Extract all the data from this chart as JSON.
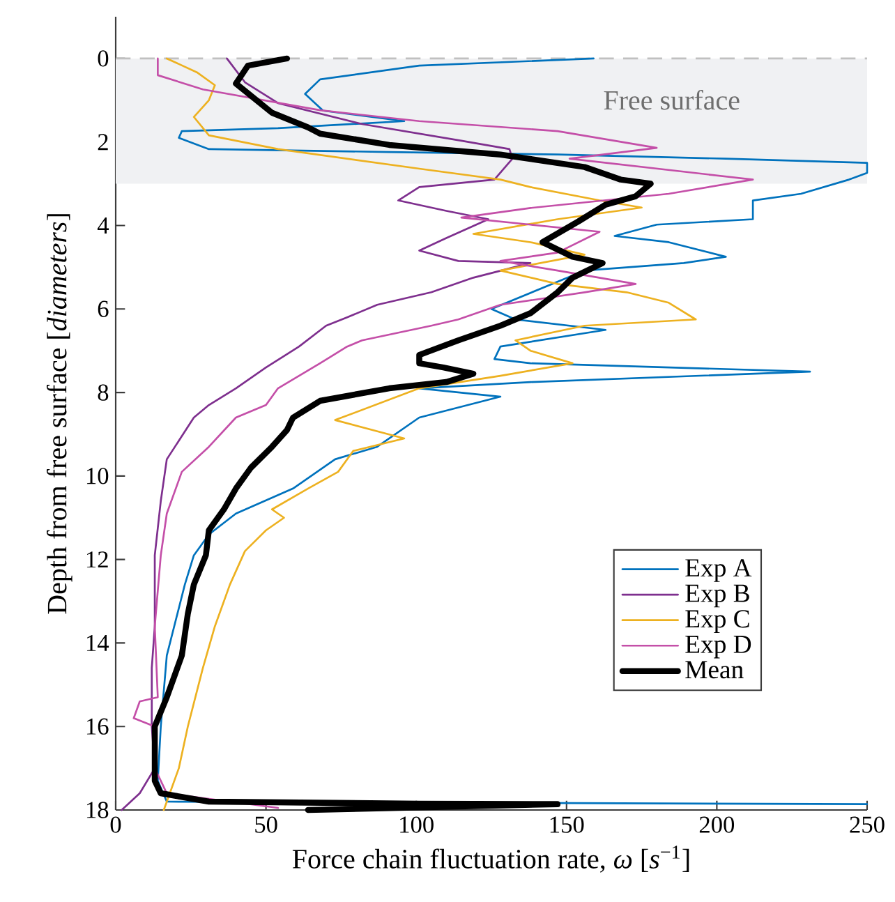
{
  "chart_data": {
    "type": "line",
    "xlabel": "Force chain fluctuation rate, *ω* [*s*$^{−1}$]",
    "ylabel": "Depth from free surface [*diameters*]",
    "xlim": [
      0,
      250
    ],
    "ylim": [
      18,
      -1
    ],
    "xticks": [
      0,
      50,
      100,
      150,
      200,
      250
    ],
    "yticks": [
      0,
      2,
      4,
      6,
      8,
      10,
      12,
      14,
      16,
      18
    ],
    "grid": false,
    "legend": "bottom right",
    "line_style": "solid",
    "marker": "none",
    "ref_lines": [
      {
        "axis": "y",
        "value": 0,
        "color": "#c0c0c0",
        "line_style": "dashed"
      }
    ],
    "bands": [
      {
        "axis": "y",
        "from": 0,
        "to": 3,
        "label": "Free surface",
        "color": "#f0f1f3"
      }
    ],
    "series": [
      {
        "name": "Exp A",
        "color": "#0072bd",
        "x": [
          159,
          101,
          68,
          63,
          69,
          96,
          54,
          22,
          21,
          31,
          91,
          147,
          203,
          250,
          250,
          244,
          228,
          212,
          212,
          180,
          166,
          184,
          203,
          189,
          156,
          125,
          133,
          163,
          128,
          126,
          138,
          231,
          138,
          101,
          128,
          101,
          87,
          73,
          59,
          40,
          31,
          26,
          23,
          17,
          15,
          14,
          17,
          250
        ],
        "values": [
          0,
          0.17,
          0.5,
          0.85,
          1.25,
          1.5,
          1.67,
          1.74,
          1.9,
          2.17,
          2.24,
          2.3,
          2.4,
          2.5,
          2.74,
          2.9,
          3.24,
          3.4,
          3.85,
          3.98,
          4.25,
          4.4,
          4.75,
          4.9,
          5.08,
          6.0,
          6.25,
          6.5,
          6.9,
          7.2,
          7.3,
          7.5,
          7.75,
          7.9,
          8.1,
          8.6,
          9.3,
          9.6,
          10.3,
          10.9,
          11.4,
          11.9,
          12.6,
          14.3,
          16,
          17.3,
          17.8,
          17.86
        ]
      },
      {
        "name": "Exp B",
        "color": "#7e2f8e",
        "x": [
          37,
          43,
          54,
          82,
          115,
          131,
          132,
          126,
          101,
          94,
          110,
          124,
          110,
          101,
          114,
          138,
          119,
          105,
          87,
          77,
          70,
          61,
          50,
          40,
          31,
          26,
          17,
          15,
          13,
          13,
          12,
          12,
          13,
          8,
          2
        ],
        "values": [
          0,
          0.57,
          1.07,
          1.57,
          1.97,
          2.17,
          2.4,
          2.9,
          3.08,
          3.4,
          3.65,
          3.85,
          4.3,
          4.6,
          4.85,
          4.9,
          5.25,
          5.6,
          5.9,
          6.2,
          6.4,
          6.9,
          7.4,
          7.9,
          8.3,
          8.6,
          9.6,
          10.6,
          11.9,
          13.6,
          14.6,
          16,
          17,
          17.6,
          18
        ]
      },
      {
        "name": "Exp C",
        "color": "#edb120",
        "x": [
          17,
          27,
          33,
          31,
          26,
          31,
          54,
          101,
          128,
          138,
          161,
          175,
          147,
          119,
          138,
          156,
          128,
          147,
          170,
          184,
          193,
          156,
          133,
          138,
          152,
          128,
          101,
          73,
          96,
          79,
          74,
          64,
          52,
          56,
          50,
          43,
          38,
          33,
          29,
          24,
          21,
          16
        ],
        "values": [
          0,
          0.33,
          0.64,
          1.0,
          1.4,
          1.84,
          2.17,
          2.64,
          2.9,
          3.08,
          3.4,
          3.57,
          3.85,
          4.2,
          4.4,
          4.7,
          5.08,
          5.4,
          5.6,
          5.85,
          6.25,
          6.4,
          6.75,
          7.0,
          7.3,
          7.6,
          7.9,
          8.66,
          9.1,
          9.4,
          9.9,
          10.3,
          10.8,
          11.0,
          11.3,
          11.8,
          12.6,
          13.6,
          14.6,
          16,
          17,
          18
        ]
      },
      {
        "name": "Exp D",
        "color": "#c44fa8",
        "x": [
          14,
          14,
          29,
          68,
          101,
          147,
          180,
          151,
          212,
          184,
          138,
          115,
          138,
          161,
          147,
          128,
          147,
          173,
          156,
          128,
          114,
          105,
          82,
          77,
          68,
          54,
          50,
          40,
          31,
          22,
          17,
          15,
          13,
          14,
          8,
          6,
          13,
          13,
          17,
          54
        ],
        "values": [
          0,
          0.4,
          0.74,
          1.24,
          1.5,
          1.74,
          2.14,
          2.4,
          2.9,
          3.24,
          3.58,
          3.81,
          3.98,
          4.15,
          4.65,
          4.85,
          5.08,
          5.4,
          5.6,
          5.9,
          6.25,
          6.4,
          6.75,
          6.9,
          7.3,
          7.9,
          8.3,
          8.6,
          9.3,
          9.9,
          10.9,
          11.9,
          13.6,
          15.3,
          15.4,
          15.8,
          16,
          17,
          17.6,
          17.95
        ]
      },
      {
        "name": "Mean",
        "color": "#000000",
        "x": [
          57,
          44,
          40,
          52,
          64,
          68,
          91,
          128,
          156,
          168,
          178,
          173,
          163,
          154,
          142,
          152,
          162,
          152,
          147,
          138,
          128,
          114,
          101,
          101,
          109,
          119,
          110,
          91,
          68,
          59,
          57,
          52,
          45,
          40,
          36,
          31,
          30,
          26,
          24,
          22,
          17,
          13,
          13,
          15,
          31,
          101,
          147,
          64
        ],
        "values": [
          0,
          0.17,
          0.6,
          1.3,
          1.65,
          1.8,
          2.07,
          2.3,
          2.6,
          2.9,
          3.0,
          3.3,
          3.5,
          3.9,
          4.4,
          4.75,
          4.9,
          5.25,
          5.6,
          6.1,
          6.4,
          6.75,
          7.1,
          7.3,
          7.4,
          7.55,
          7.75,
          7.9,
          8.2,
          8.6,
          8.9,
          9.3,
          9.8,
          10.3,
          10.8,
          11.3,
          11.9,
          12.6,
          13.3,
          14.3,
          15.3,
          16.0,
          17.3,
          17.6,
          17.8,
          17.85,
          17.86,
          18
        ]
      }
    ]
  }
}
